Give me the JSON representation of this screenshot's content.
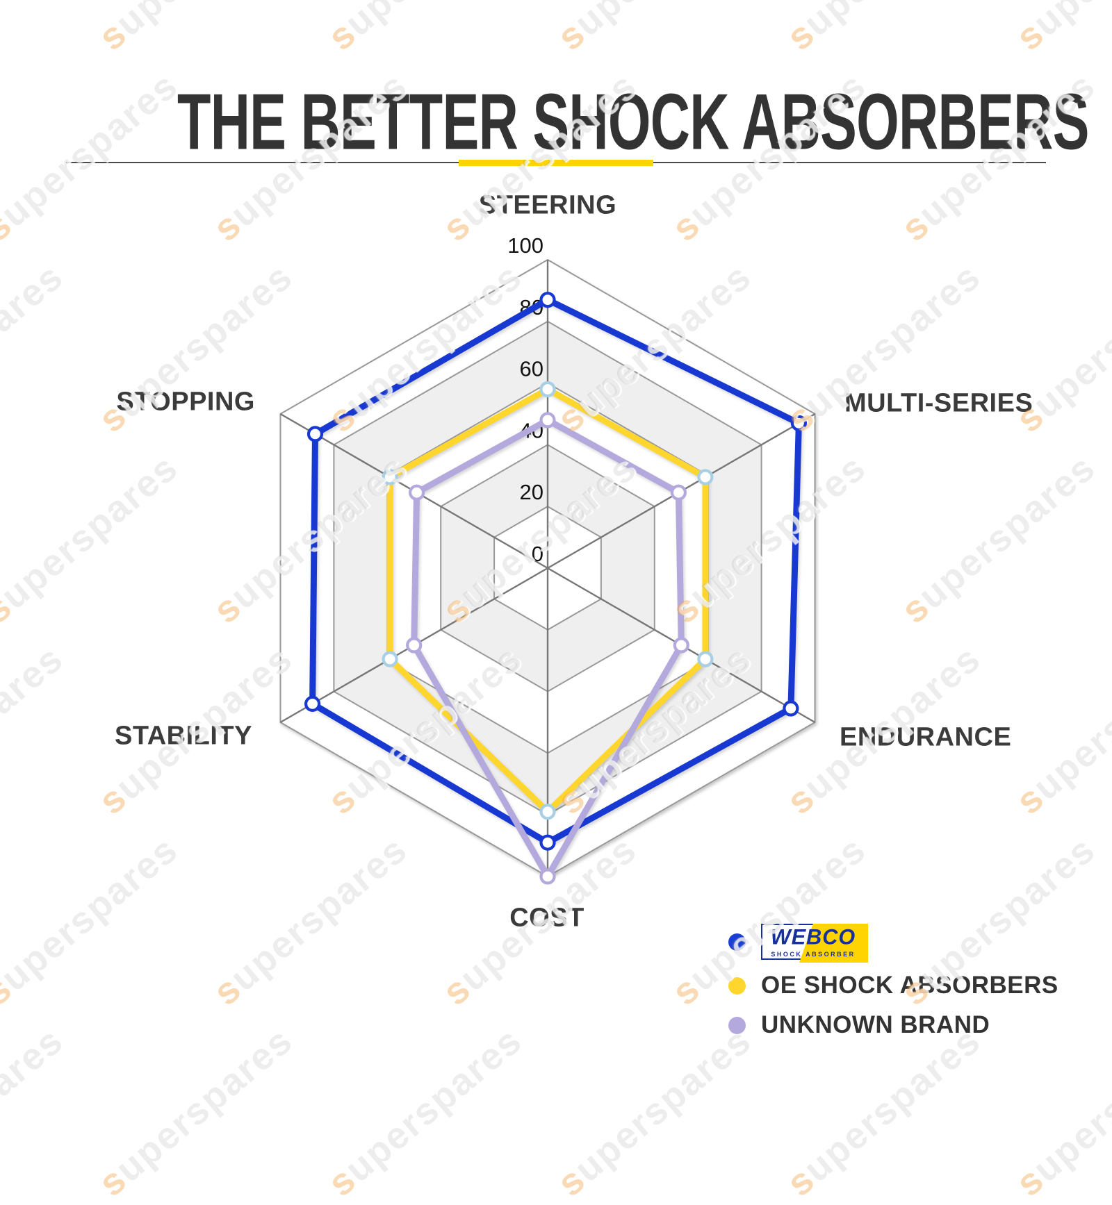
{
  "page": {
    "title": "THE BETTER SHOCK ABSORBERS",
    "watermark": "superspares",
    "accent_color": "#ffd400",
    "title_color": "#333333"
  },
  "chart_data": {
    "type": "radar",
    "title": "THE BETTER SHOCK ABSORBERS",
    "categories": [
      "STEERING",
      "MULTI-SERIES",
      "ENDURANCE",
      "COST",
      "STABILITY",
      "STOPPING"
    ],
    "ticks": [
      100,
      80,
      60,
      40,
      20,
      0
    ],
    "axis_range": [
      0,
      100
    ],
    "grid": {
      "ring_fill_alt": "#efefef",
      "ring_fill": "#ffffff",
      "ring_stroke": "#999999",
      "spoke_stroke": "#777777",
      "shape": "hexagon",
      "legend_position": "bottom-right"
    },
    "series": [
      {
        "name": "WEBCO SHOCK ABSORBER",
        "color": "#1838d2",
        "marker_stroke": "#1838d2",
        "values": [
          87,
          94,
          91,
          89,
          88,
          87
        ]
      },
      {
        "name": "OE SHOCK ABSORBERS",
        "color": "#ffd62e",
        "marker_stroke": "#a8cfe4",
        "values": [
          58,
          59,
          59,
          79,
          59,
          59
        ]
      },
      {
        "name": "UNKNOWN BRAND",
        "color": "#b4a9dc",
        "marker_stroke": "#b4a9dc",
        "values": [
          48,
          49,
          50,
          100,
          50,
          49
        ]
      }
    ]
  },
  "legend": {
    "items": [
      {
        "label": "WEBCO",
        "sub": "SHOCK ABSORBER",
        "dot": "#1a3fd4",
        "logo_text_color": "#16309c",
        "logo_accent": "#ffd400"
      },
      {
        "label": "OE SHOCK ABSORBERS",
        "dot": "#ffd62e"
      },
      {
        "label": "UNKNOWN BRAND",
        "dot": "#b4a9dc"
      }
    ]
  }
}
